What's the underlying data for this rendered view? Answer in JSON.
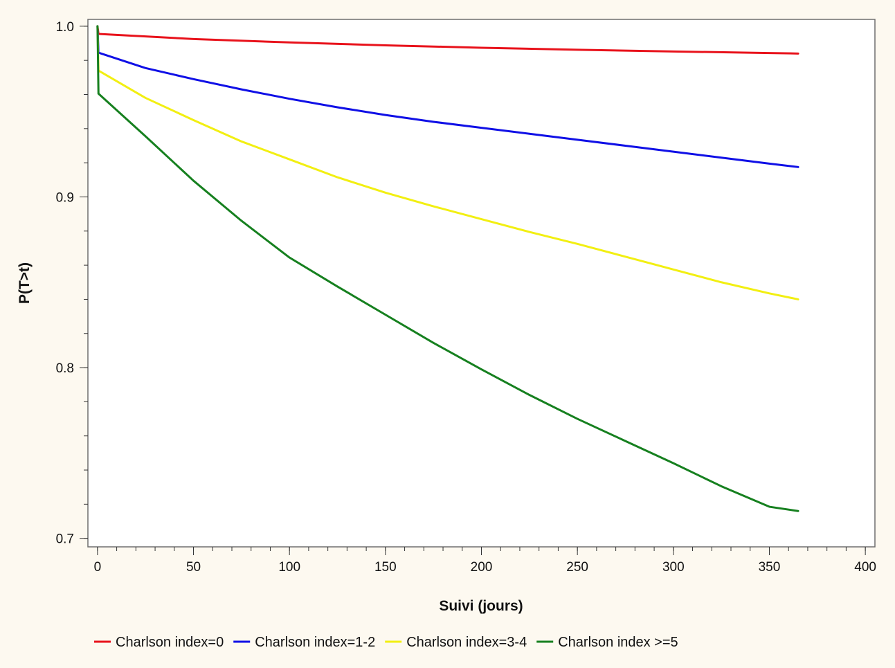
{
  "chart_data": {
    "type": "line",
    "title": "",
    "xlabel": "Suivi (jours)",
    "ylabel": "P(T>t)",
    "xlim": [
      -5,
      405
    ],
    "ylim": [
      0.695,
      1.004
    ],
    "x_ticks": [
      0,
      50,
      100,
      150,
      200,
      250,
      300,
      350,
      400
    ],
    "y_ticks": [
      0.7,
      0.8,
      0.9,
      1.0
    ],
    "y_tick_labels": [
      "0.7",
      "0.8",
      "0.9",
      "1.0"
    ],
    "x_minor_step": 10,
    "y_minor_step": 0.02,
    "grid": false,
    "legend_position": "bottom",
    "series": [
      {
        "name": "Charlson index=0",
        "color": "#e8121b",
        "x": [
          0,
          0.5,
          50,
          100,
          150,
          200,
          250,
          300,
          350,
          365
        ],
        "y": [
          1.0,
          0.9955,
          0.9925,
          0.9905,
          0.9888,
          0.9874,
          0.9862,
          0.9852,
          0.9843,
          0.984
        ]
      },
      {
        "name": "Charlson index=1-2",
        "color": "#1010e6",
        "x": [
          0,
          0.5,
          25,
          50,
          75,
          100,
          125,
          150,
          175,
          200,
          225,
          250,
          275,
          300,
          325,
          350,
          365
        ],
        "y": [
          1.0,
          0.9845,
          0.9755,
          0.969,
          0.963,
          0.9575,
          0.9525,
          0.948,
          0.944,
          0.9405,
          0.937,
          0.9335,
          0.93,
          0.9265,
          0.923,
          0.9195,
          0.9175
        ]
      },
      {
        "name": "Charlson index=3-4",
        "color": "#f2ef12",
        "x": [
          0,
          0.5,
          25,
          50,
          75,
          100,
          125,
          150,
          175,
          200,
          225,
          250,
          275,
          300,
          325,
          350,
          365
        ],
        "y": [
          1.0,
          0.974,
          0.958,
          0.945,
          0.9325,
          0.922,
          0.9115,
          0.9025,
          0.8945,
          0.887,
          0.8795,
          0.8725,
          0.865,
          0.8575,
          0.85,
          0.8435,
          0.84
        ]
      },
      {
        "name": "Charlson index >=5",
        "color": "#16801f",
        "x": [
          0,
          0.5,
          25,
          50,
          75,
          100,
          125,
          150,
          175,
          200,
          225,
          250,
          275,
          300,
          325,
          350,
          365
        ],
        "y": [
          1.0,
          0.9605,
          0.9355,
          0.9095,
          0.886,
          0.8645,
          0.8475,
          0.831,
          0.8145,
          0.799,
          0.784,
          0.77,
          0.757,
          0.744,
          0.7305,
          0.7185,
          0.716
        ]
      }
    ]
  }
}
